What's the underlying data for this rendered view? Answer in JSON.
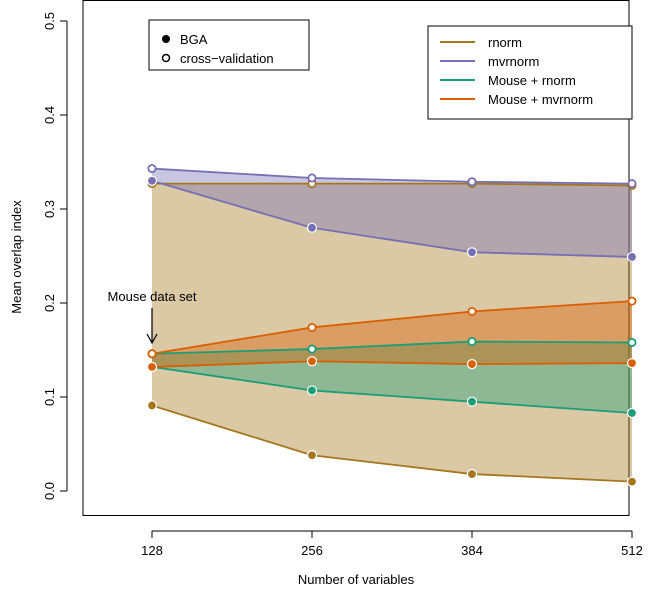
{
  "chart_data": {
    "type": "line",
    "xlabel": "Number of variables",
    "ylabel": "Mean overlap index",
    "x": [
      128,
      256,
      384,
      512
    ],
    "x_ticks": [
      "128",
      "256",
      "384",
      "512"
    ],
    "y_ticks": [
      "0.0",
      "0.1",
      "0.2",
      "0.3",
      "0.4",
      "0.5"
    ],
    "xlim": [
      128,
      512
    ],
    "ylim": [
      0,
      0.5
    ],
    "grid": false,
    "annotation": {
      "text": "Mouse data set",
      "x": 128,
      "y": 0.146
    },
    "legend_markers": [
      {
        "label": "BGA",
        "marker": "filled"
      },
      {
        "label": "cross−validation",
        "marker": "open"
      }
    ],
    "legend_series_placement": "top-right",
    "legend_markers_placement": "top-left",
    "series": [
      {
        "name": "rnorm",
        "color": "#A6761D",
        "bga": [
          0.091,
          0.038,
          0.018,
          0.01
        ],
        "cv": [
          0.327,
          0.327,
          0.327,
          0.325
        ]
      },
      {
        "name": "mvrnorm",
        "color": "#7570B3",
        "bga": [
          0.33,
          0.28,
          0.254,
          0.249
        ],
        "cv": [
          0.343,
          0.333,
          0.329,
          0.327
        ]
      },
      {
        "name": "Mouse + rnorm",
        "color": "#1B9E77",
        "bga": [
          0.132,
          0.107,
          0.095,
          0.083
        ],
        "cv": [
          0.146,
          0.151,
          0.159,
          0.158
        ]
      },
      {
        "name": "Mouse + mvrnorm",
        "color": "#D95F02",
        "bga": [
          0.132,
          0.138,
          0.135,
          0.136
        ],
        "cv": [
          0.146,
          0.174,
          0.191,
          0.202
        ]
      }
    ]
  }
}
